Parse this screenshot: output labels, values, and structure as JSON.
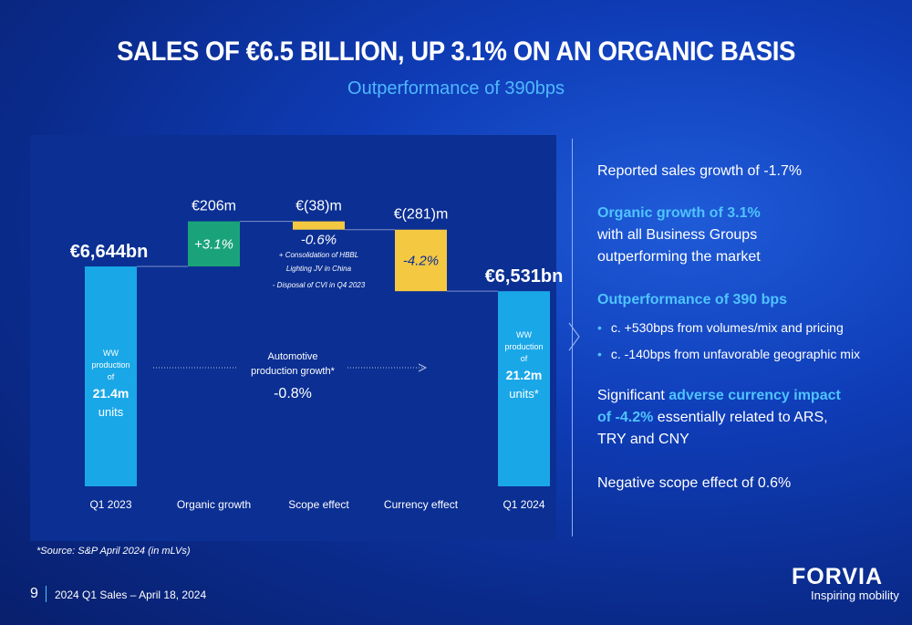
{
  "title": "SALES OF €6.5 BILLION, UP 3.1% ON AN ORGANIC BASIS",
  "subtitle": "Outperformance of 390bps",
  "chart_data": {
    "type": "bar",
    "subtype": "waterfall",
    "categories": [
      "Q1 2023",
      "Organic growth",
      "Scope effect",
      "Currency effect",
      "Q1 2024"
    ],
    "values": [
      6644,
      206,
      -38,
      -281,
      6531
    ],
    "value_labels": [
      "€6,644bn",
      "€206m",
      "€(38)m",
      "€(281)m",
      "€6,531bn"
    ],
    "pct_labels": [
      "",
      "+3.1%",
      "-0.6%",
      "-4.2%",
      ""
    ],
    "bar_colors": [
      "#19a7e8",
      "#1aa37a",
      "#f5c842",
      "#f5c842",
      "#19a7e8"
    ],
    "start_inner": {
      "line1": "WW",
      "line2": "production",
      "line3": "of",
      "value": "21.4m",
      "unit": "units"
    },
    "end_inner": {
      "line1": "WW",
      "line2": "production",
      "line3": "of",
      "value": "21.2m",
      "unit": "units*"
    },
    "scope_note": {
      "line1": "+ Consolidation of HBBL",
      "line2": "Lighting JV in China",
      "line3": "- Disposal of CVI in Q4 2023"
    },
    "auto_note": {
      "line1": "Automotive",
      "line2": "production growth*",
      "value": "-0.8%"
    }
  },
  "right": {
    "reported": "Reported sales growth of -1.7%",
    "organic_head": "Organic growth of 3.1%",
    "organic_l1": "with all Business Groups",
    "organic_l2": "outperforming the market",
    "outperf_head": "Outperformance of 390 bps",
    "bullet1": "c. +530bps from volumes/mix and pricing",
    "bullet2": "c. -140bps from unfavorable geographic mix",
    "fx_pre": "Significant ",
    "fx_hl1": "adverse currency impact",
    "fx_hl2": "of -4.2%",
    "fx_post": " essentially related to ARS,",
    "fx_l3": "TRY and CNY",
    "scope": "Negative scope effect of 0.6%"
  },
  "source": "*Source: S&P April 2024 (in mLVs)",
  "page_number": "9",
  "footer": "2024 Q1 Sales – April 18, 2024",
  "logo": "FORVIA",
  "tagline": "Inspiring mobility"
}
